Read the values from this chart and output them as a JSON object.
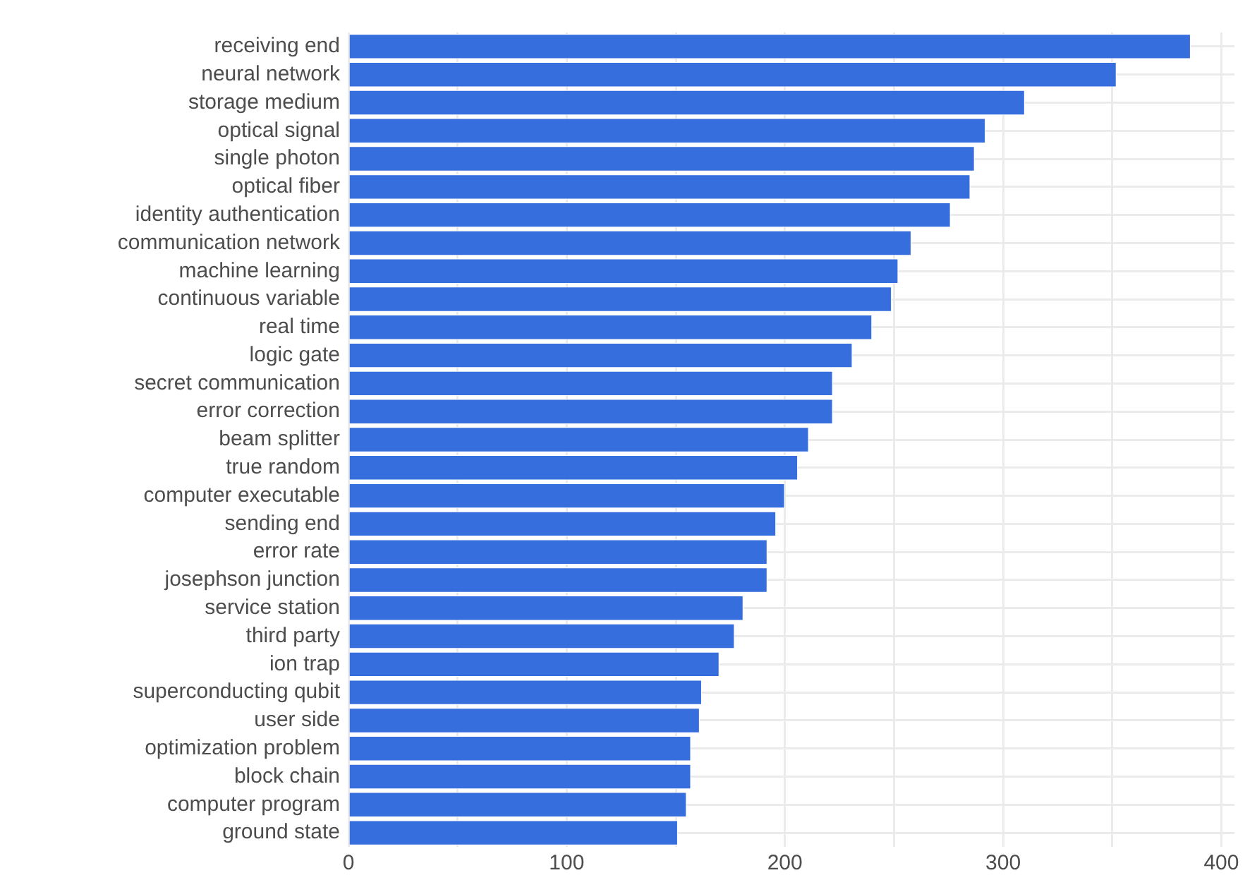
{
  "chart_data": {
    "type": "bar",
    "orientation": "horizontal",
    "categories": [
      "receiving end",
      "neural network",
      "storage medium",
      "optical signal",
      "single photon",
      "optical fiber",
      "identity authentication",
      "communication network",
      "machine learning",
      "continuous variable",
      "real time",
      "logic gate",
      "secret communication",
      "error correction",
      "beam splitter",
      "true random",
      "computer executable",
      "sending end",
      "error rate",
      "josephson junction",
      "service station",
      "third party",
      "ion trap",
      "superconducting qubit",
      "user side",
      "optimization problem",
      "block chain",
      "computer program",
      "ground state"
    ],
    "values": [
      386,
      352,
      310,
      292,
      287,
      285,
      276,
      258,
      252,
      249,
      240,
      231,
      222,
      222,
      211,
      206,
      200,
      196,
      192,
      192,
      181,
      177,
      170,
      162,
      161,
      157,
      157,
      155,
      151
    ],
    "color": "#366ede",
    "xlim": [
      0,
      406
    ],
    "xticks": [
      0,
      {
        "value": 50,
        "label": null
      },
      100,
      {
        "value": 150,
        "label": null
      },
      200,
      {
        "value": 250,
        "label": null
      },
      300,
      {
        "value": 350,
        "label": null
      },
      400
    ],
    "grid": true,
    "legend": false
  }
}
